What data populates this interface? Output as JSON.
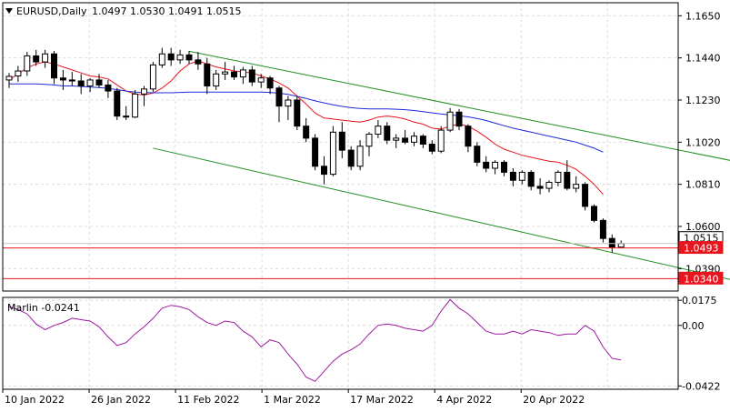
{
  "header": {
    "symbol": "EURUSD,Daily",
    "ohlc": "1.0497 1.0530 1.0491 1.0515",
    "menu_arrow": "triangle-down-icon"
  },
  "indicator": {
    "label": "Marlin -0.0241"
  },
  "colors": {
    "bull_candle": "#ffffff",
    "bear_candle": "#000000",
    "ma_fast": "#e8141e",
    "ma_slow": "#1c2bd6",
    "channel": "#1f8f1f",
    "level": "#e8141e",
    "oscillator": "#9b1aa0",
    "price_tag_bg": "#e8141e",
    "current_tag_bg": "#ffffff",
    "grid": "#dcdcdc"
  },
  "chart_data": [
    {
      "type": "candlestick",
      "title": "EURUSD,Daily",
      "ylim": [
        1.0278,
        1.1715
      ],
      "yticks": [
        "1.1650",
        "1.1440",
        "1.1230",
        "1.1020",
        "1.0810",
        "1.0600",
        "1.0390"
      ],
      "xticks": [
        "10 Jan 2022",
        "26 Jan 2022",
        "11 Feb 2022",
        "1 Mar 2022",
        "17 Mar 2022",
        "4 Apr 2022",
        "20 Apr 2022"
      ],
      "grid": true,
      "price_tags": [
        "1.0515",
        "1.0493",
        "1.0340"
      ],
      "levels": [
        1.0493,
        1.034
      ],
      "candles": [
        [
          1.133,
          1.1365,
          1.129,
          1.1348
        ],
        [
          1.135,
          1.14,
          1.132,
          1.1375
        ],
        [
          1.1375,
          1.147,
          1.135,
          1.145
        ],
        [
          1.145,
          1.148,
          1.14,
          1.142
        ],
        [
          1.142,
          1.148,
          1.139,
          1.146
        ],
        [
          1.146,
          1.1475,
          1.131,
          1.134
        ],
        [
          1.134,
          1.138,
          1.128,
          1.133
        ],
        [
          1.133,
          1.137,
          1.13,
          1.1325
        ],
        [
          1.1325,
          1.136,
          1.126,
          1.13
        ],
        [
          1.13,
          1.134,
          1.127,
          1.133
        ],
        [
          1.133,
          1.136,
          1.129,
          1.1305
        ],
        [
          1.1305,
          1.133,
          1.124,
          1.1275
        ],
        [
          1.1275,
          1.129,
          1.113,
          1.115
        ],
        [
          1.115,
          1.12,
          1.113,
          1.1145
        ],
        [
          1.1145,
          1.128,
          1.114,
          1.126
        ],
        [
          1.126,
          1.13,
          1.12,
          1.1285
        ],
        [
          1.1285,
          1.142,
          1.127,
          1.1405
        ],
        [
          1.1405,
          1.149,
          1.139,
          1.146
        ],
        [
          1.146,
          1.149,
          1.14,
          1.143
        ],
        [
          1.143,
          1.148,
          1.141,
          1.1455
        ],
        [
          1.1455,
          1.1475,
          1.141,
          1.143
        ],
        [
          1.143,
          1.147,
          1.138,
          1.141
        ],
        [
          1.141,
          1.144,
          1.126,
          1.13
        ],
        [
          1.13,
          1.138,
          1.128,
          1.136
        ],
        [
          1.136,
          1.142,
          1.133,
          1.137
        ],
        [
          1.137,
          1.14,
          1.133,
          1.1345
        ],
        [
          1.1345,
          1.1395,
          1.131,
          1.138
        ],
        [
          1.138,
          1.14,
          1.13,
          1.132
        ],
        [
          1.132,
          1.136,
          1.129,
          1.134
        ],
        [
          1.134,
          1.135,
          1.126,
          1.129
        ],
        [
          1.129,
          1.13,
          1.112,
          1.12
        ],
        [
          1.12,
          1.125,
          1.113,
          1.123
        ],
        [
          1.123,
          1.125,
          1.108,
          1.11
        ],
        [
          1.11,
          1.114,
          1.102,
          1.104
        ],
        [
          1.104,
          1.106,
          1.088,
          1.09
        ],
        [
          1.09,
          1.095,
          1.081,
          1.086
        ],
        [
          1.086,
          1.11,
          1.085,
          1.107
        ],
        [
          1.107,
          1.112,
          1.094,
          1.098
        ],
        [
          1.098,
          1.1,
          1.088,
          1.09
        ],
        [
          1.09,
          1.103,
          1.088,
          1.1
        ],
        [
          1.1,
          1.107,
          1.095,
          1.106
        ],
        [
          1.106,
          1.113,
          1.104,
          1.11
        ],
        [
          1.11,
          1.112,
          1.101,
          1.103
        ],
        [
          1.103,
          1.106,
          1.099,
          1.104
        ],
        [
          1.104,
          1.108,
          1.101,
          1.102
        ],
        [
          1.102,
          1.107,
          1.1,
          1.105
        ],
        [
          1.105,
          1.106,
          1.099,
          1.101
        ],
        [
          1.101,
          1.103,
          1.096,
          1.0975
        ],
        [
          1.0975,
          1.11,
          1.0965,
          1.108
        ],
        [
          1.108,
          1.119,
          1.107,
          1.117
        ],
        [
          1.117,
          1.1185,
          1.108,
          1.11
        ],
        [
          1.11,
          1.111,
          1.097,
          1.1
        ],
        [
          1.1,
          1.102,
          1.09,
          1.092
        ],
        [
          1.092,
          1.095,
          1.087,
          1.089
        ],
        [
          1.089,
          1.093,
          1.086,
          1.092
        ],
        [
          1.092,
          1.093,
          1.085,
          1.087
        ],
        [
          1.087,
          1.089,
          1.08,
          1.083
        ],
        [
          1.083,
          1.088,
          1.081,
          1.087
        ],
        [
          1.087,
          1.088,
          1.078,
          1.08
        ],
        [
          1.08,
          1.084,
          1.076,
          1.079
        ],
        [
          1.079,
          1.083,
          1.077,
          1.082
        ],
        [
          1.082,
          1.088,
          1.08,
          1.087
        ],
        [
          1.087,
          1.093,
          1.078,
          1.079
        ],
        [
          1.079,
          1.085,
          1.077,
          1.081
        ],
        [
          1.081,
          1.082,
          1.068,
          1.07
        ],
        [
          1.07,
          1.071,
          1.062,
          1.063
        ],
        [
          1.063,
          1.064,
          1.052,
          1.054
        ],
        [
          1.054,
          1.056,
          1.047,
          1.0497
        ],
        [
          1.0497,
          1.053,
          1.0491,
          1.0515
        ]
      ],
      "series": [
        {
          "name": "",
          "color": "#e8141e",
          "values": [
            1.133,
            1.136,
            1.139,
            1.141,
            1.142,
            1.141,
            1.1395,
            1.138,
            1.1365,
            1.135,
            1.1345,
            1.1335,
            1.1305,
            1.1275,
            1.126,
            1.1255,
            1.1265,
            1.129,
            1.1325,
            1.1375,
            1.141,
            1.1425,
            1.141,
            1.1395,
            1.1385,
            1.1375,
            1.137,
            1.1365,
            1.135,
            1.1335,
            1.1315,
            1.129,
            1.125,
            1.121,
            1.1165,
            1.114,
            1.1135,
            1.113,
            1.1125,
            1.112,
            1.113,
            1.1145,
            1.115,
            1.1145,
            1.1135,
            1.112,
            1.111,
            1.109,
            1.1085,
            1.11,
            1.111,
            1.11,
            1.1075,
            1.1045,
            1.101,
            1.0985,
            1.097,
            1.0955,
            1.0945,
            1.0935,
            1.0925,
            1.092,
            1.0905,
            1.0885,
            1.085,
            1.081,
            1.076
          ]
        },
        {
          "name": "",
          "color": "#1c2bd6",
          "values": [
            1.131,
            1.131,
            1.131,
            1.131,
            1.1308,
            1.1305,
            1.13,
            1.13,
            1.1298,
            1.1295,
            1.1292,
            1.1288,
            1.1282,
            1.1275,
            1.127,
            1.1268,
            1.1266,
            1.1266,
            1.1266,
            1.1268,
            1.127,
            1.127,
            1.127,
            1.127,
            1.127,
            1.127,
            1.127,
            1.127,
            1.127,
            1.1268,
            1.1264,
            1.1258,
            1.1248,
            1.1238,
            1.1226,
            1.1216,
            1.1206,
            1.1198,
            1.1192,
            1.1188,
            1.1186,
            1.1186,
            1.1186,
            1.1184,
            1.1182,
            1.1178,
            1.1172,
            1.1166,
            1.116,
            1.1156,
            1.1152,
            1.1146,
            1.1138,
            1.1128,
            1.1115,
            1.1102,
            1.109,
            1.108,
            1.107,
            1.106,
            1.105,
            1.104,
            1.103,
            1.102,
            1.1005,
            1.099,
            1.097
          ]
        }
      ],
      "channel": {
        "upper": [
          [
            1.1473,
            20
          ],
          [
            1.0885,
            85
          ]
        ],
        "lower": [
          [
            1.099,
            16
          ],
          [
            1.0286,
            85
          ]
        ]
      }
    },
    {
      "type": "line",
      "title": "Marlin -0.0241",
      "ylim": [
        -0.0445,
        0.0195
      ],
      "yticks": [
        "0.0175",
        "0.00",
        "-0.0422"
      ],
      "series": [
        {
          "name": "Marlin",
          "color": "#9b1aa0",
          "values": [
            0.013,
            0.011,
            0.008,
            0.001,
            -0.003,
            0.0,
            0.002,
            0.005,
            0.004,
            0.003,
            -0.001,
            -0.008,
            -0.014,
            -0.012,
            -0.006,
            -0.001,
            0.005,
            0.012,
            0.014,
            0.013,
            0.011,
            0.006,
            0.002,
            0.0,
            0.003,
            0.002,
            -0.004,
            -0.008,
            -0.015,
            -0.01,
            -0.012,
            -0.02,
            -0.027,
            -0.036,
            -0.039,
            -0.032,
            -0.025,
            -0.02,
            -0.017,
            -0.013,
            -0.006,
            0.0,
            0.001,
            0.0,
            -0.002,
            -0.003,
            -0.004,
            0.0,
            0.01,
            0.018,
            0.012,
            0.008,
            0.002,
            -0.004,
            -0.006,
            -0.006,
            -0.004,
            -0.006,
            -0.003,
            -0.004,
            -0.005,
            -0.007,
            -0.006,
            -0.006,
            0.0,
            -0.004,
            -0.015,
            -0.023,
            -0.0241
          ]
        }
      ]
    }
  ]
}
